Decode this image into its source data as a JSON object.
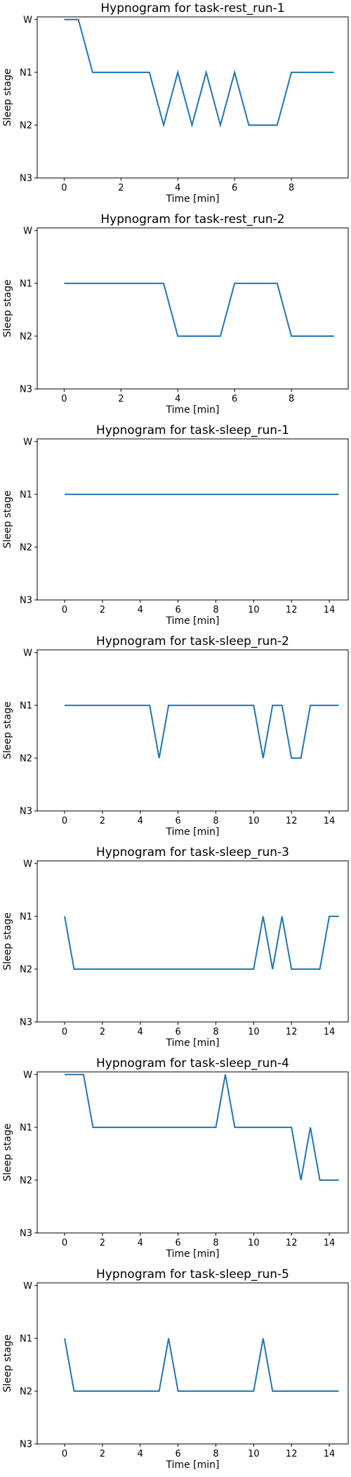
{
  "figure": {
    "ylabel": "Sleep stage",
    "xlabel": "Time [min]",
    "stage_labels": [
      "W",
      "N1",
      "N2",
      "N3"
    ],
    "line_color": "#1f77b4"
  },
  "chart_data": [
    {
      "type": "line",
      "title": "Hypnogram for task-rest_run-1",
      "xlabel": "Time [min]",
      "ylabel": "Sleep stage",
      "xlim": [
        -0.95,
        10.0
      ],
      "xticks": [
        0,
        2,
        4,
        6,
        8
      ],
      "yticks": [
        "W",
        "N1",
        "N2",
        "N3"
      ],
      "x": [
        0,
        0.5,
        1,
        1.5,
        2,
        2.5,
        3,
        3.5,
        4,
        4.5,
        5,
        5.5,
        6,
        6.5,
        7,
        7.5,
        8,
        8.5,
        9,
        9.5
      ],
      "y": [
        "W",
        "W",
        "N1",
        "N1",
        "N1",
        "N1",
        "N1",
        "N2",
        "N1",
        "N2",
        "N1",
        "N2",
        "N1",
        "N2",
        "N2",
        "N2",
        "N1",
        "N1",
        "N1",
        "N1"
      ]
    },
    {
      "type": "line",
      "title": "Hypnogram for task-rest_run-2",
      "xlabel": "Time [min]",
      "ylabel": "Sleep stage",
      "xlim": [
        -0.95,
        10.0
      ],
      "xticks": [
        0,
        2,
        4,
        6,
        8
      ],
      "yticks": [
        "W",
        "N1",
        "N2",
        "N3"
      ],
      "x": [
        0,
        0.5,
        1,
        1.5,
        2,
        2.5,
        3,
        3.5,
        4,
        4.5,
        5,
        5.5,
        6,
        6.5,
        7,
        7.5,
        8,
        8.5,
        9,
        9.5
      ],
      "y": [
        "N1",
        "N1",
        "N1",
        "N1",
        "N1",
        "N1",
        "N1",
        "N1",
        "N2",
        "N2",
        "N2",
        "N2",
        "N1",
        "N1",
        "N1",
        "N1",
        "N2",
        "N2",
        "N2",
        "N2"
      ]
    },
    {
      "type": "line",
      "title": "Hypnogram for task-sleep_run-1",
      "xlabel": "Time [min]",
      "ylabel": "Sleep stage",
      "xlim": [
        -1.45,
        15.0
      ],
      "xticks": [
        0,
        2,
        4,
        6,
        8,
        10,
        12,
        14
      ],
      "yticks": [
        "W",
        "N1",
        "N2",
        "N3"
      ],
      "x": [
        0,
        0.5,
        1,
        1.5,
        2,
        2.5,
        3,
        3.5,
        4,
        4.5,
        5,
        5.5,
        6,
        6.5,
        7,
        7.5,
        8,
        8.5,
        9,
        9.5,
        10,
        10.5,
        11,
        11.5,
        12,
        12.5,
        13,
        13.5,
        14,
        14.5
      ],
      "y": [
        "N1",
        "N1",
        "N1",
        "N1",
        "N1",
        "N1",
        "N1",
        "N1",
        "N1",
        "N1",
        "N1",
        "N1",
        "N1",
        "N1",
        "N1",
        "N1",
        "N1",
        "N1",
        "N1",
        "N1",
        "N1",
        "N1",
        "N1",
        "N1",
        "N1",
        "N1",
        "N1",
        "N1",
        "N1",
        "N1"
      ]
    },
    {
      "type": "line",
      "title": "Hypnogram for task-sleep_run-2",
      "xlabel": "Time [min]",
      "ylabel": "Sleep stage",
      "xlim": [
        -1.45,
        15.0
      ],
      "xticks": [
        0,
        2,
        4,
        6,
        8,
        10,
        12,
        14
      ],
      "yticks": [
        "W",
        "N1",
        "N2",
        "N3"
      ],
      "x": [
        0,
        0.5,
        1,
        1.5,
        2,
        2.5,
        3,
        3.5,
        4,
        4.5,
        5,
        5.5,
        6,
        6.5,
        7,
        7.5,
        8,
        8.5,
        9,
        9.5,
        10,
        10.5,
        11,
        11.5,
        12,
        12.5,
        13,
        13.5,
        14,
        14.5
      ],
      "y": [
        "N1",
        "N1",
        "N1",
        "N1",
        "N1",
        "N1",
        "N1",
        "N1",
        "N1",
        "N1",
        "N2",
        "N1",
        "N1",
        "N1",
        "N1",
        "N1",
        "N1",
        "N1",
        "N1",
        "N1",
        "N1",
        "N2",
        "N1",
        "N1",
        "N2",
        "N2",
        "N1",
        "N1",
        "N1",
        "N1"
      ]
    },
    {
      "type": "line",
      "title": "Hypnogram for task-sleep_run-3",
      "xlabel": "Time [min]",
      "ylabel": "Sleep stage",
      "xlim": [
        -1.45,
        15.0
      ],
      "xticks": [
        0,
        2,
        4,
        6,
        8,
        10,
        12,
        14
      ],
      "yticks": [
        "W",
        "N1",
        "N2",
        "N3"
      ],
      "x": [
        0,
        0.5,
        1,
        1.5,
        2,
        2.5,
        3,
        3.5,
        4,
        4.5,
        5,
        5.5,
        6,
        6.5,
        7,
        7.5,
        8,
        8.5,
        9,
        9.5,
        10,
        10.5,
        11,
        11.5,
        12,
        12.5,
        13,
        13.5,
        14,
        14.5
      ],
      "y": [
        "N1",
        "N2",
        "N2",
        "N2",
        "N2",
        "N2",
        "N2",
        "N2",
        "N2",
        "N2",
        "N2",
        "N2",
        "N2",
        "N2",
        "N2",
        "N2",
        "N2",
        "N2",
        "N2",
        "N2",
        "N2",
        "N1",
        "N2",
        "N1",
        "N2",
        "N2",
        "N2",
        "N2",
        "N1",
        "N1"
      ]
    },
    {
      "type": "line",
      "title": "Hypnogram for task-sleep_run-4",
      "xlabel": "Time [min]",
      "ylabel": "Sleep stage",
      "xlim": [
        -1.45,
        15.0
      ],
      "xticks": [
        0,
        2,
        4,
        6,
        8,
        10,
        12,
        14
      ],
      "yticks": [
        "W",
        "N1",
        "N2",
        "N3"
      ],
      "x": [
        0,
        0.5,
        1,
        1.5,
        2,
        2.5,
        3,
        3.5,
        4,
        4.5,
        5,
        5.5,
        6,
        6.5,
        7,
        7.5,
        8,
        8.5,
        9,
        9.5,
        10,
        10.5,
        11,
        11.5,
        12,
        12.5,
        13,
        13.5,
        14,
        14.5
      ],
      "y": [
        "W",
        "W",
        "W",
        "N1",
        "N1",
        "N1",
        "N1",
        "N1",
        "N1",
        "N1",
        "N1",
        "N1",
        "N1",
        "N1",
        "N1",
        "N1",
        "N1",
        "W",
        "N1",
        "N1",
        "N1",
        "N1",
        "N1",
        "N1",
        "N1",
        "N2",
        "N1",
        "N2",
        "N2",
        "N2"
      ]
    },
    {
      "type": "line",
      "title": "Hypnogram for task-sleep_run-5",
      "xlabel": "Time [min]",
      "ylabel": "Sleep stage",
      "xlim": [
        -1.45,
        15.0
      ],
      "xticks": [
        0,
        2,
        4,
        6,
        8,
        10,
        12,
        14
      ],
      "yticks": [
        "W",
        "N1",
        "N2",
        "N3"
      ],
      "x": [
        0,
        0.5,
        1,
        1.5,
        2,
        2.5,
        3,
        3.5,
        4,
        4.5,
        5,
        5.5,
        6,
        6.5,
        7,
        7.5,
        8,
        8.5,
        9,
        9.5,
        10,
        10.5,
        11,
        11.5,
        12,
        12.5,
        13,
        13.5,
        14,
        14.5
      ],
      "y": [
        "N1",
        "N2",
        "N2",
        "N2",
        "N2",
        "N2",
        "N2",
        "N2",
        "N2",
        "N2",
        "N2",
        "N1",
        "N2",
        "N2",
        "N2",
        "N2",
        "N2",
        "N2",
        "N2",
        "N2",
        "N2",
        "N1",
        "N2",
        "N2",
        "N2",
        "N2",
        "N2",
        "N2",
        "N2",
        "N2"
      ]
    }
  ]
}
